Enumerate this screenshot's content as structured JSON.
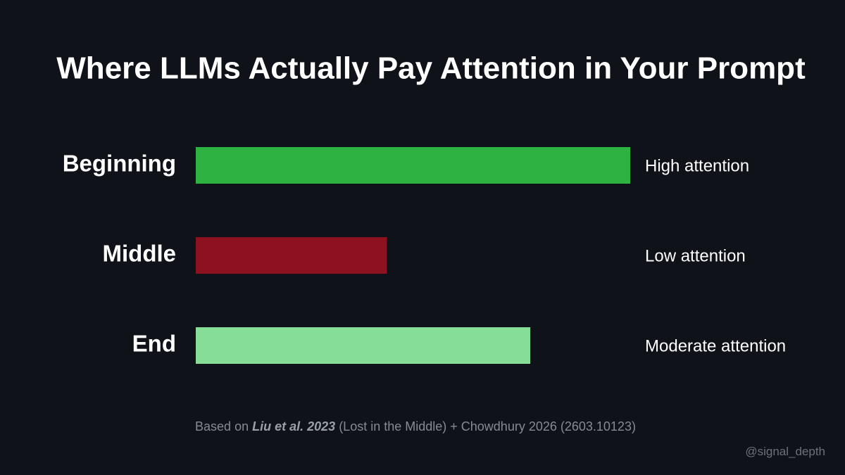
{
  "chart_data": {
    "type": "bar",
    "orientation": "horizontal",
    "title": "Where LLMs Actually Pay Attention in Your Prompt",
    "categories": [
      "Beginning",
      "Middle",
      "End"
    ],
    "values": [
      100,
      44,
      77
    ],
    "colors": [
      "#2eb342",
      "#8e111f",
      "#86dd98"
    ],
    "annotations": [
      "High attention",
      "Low attention",
      "Moderate attention"
    ],
    "xlim": [
      0,
      100
    ],
    "source": [
      "Based on",
      "Liu et al. 2023",
      "(Lost in the Middle) + Chowdhury 2026 (2603.10123)"
    ],
    "watermark": "@signal_depth"
  }
}
